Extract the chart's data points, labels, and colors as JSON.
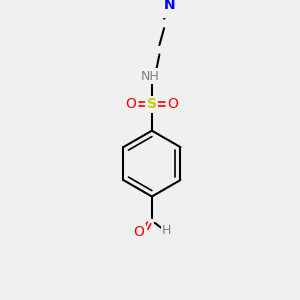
{
  "background_color": "#f0f0f0",
  "bond_color": "#000000",
  "colors": {
    "N": "#0000ff",
    "O": "#ff0000",
    "S": "#cccc00",
    "C": "#000000",
    "H_gray": "#808080"
  },
  "figsize": [
    3.0,
    3.0
  ],
  "dpi": 100
}
